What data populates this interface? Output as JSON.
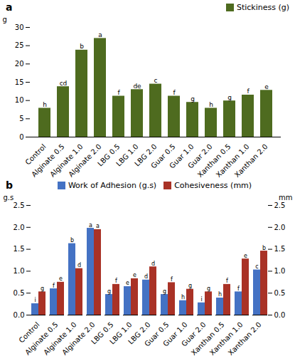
{
  "chart_data": [
    {
      "type": "bar",
      "title": "a",
      "categories": [
        "Control",
        "Alginate 0.5",
        "Alginate 1.0",
        "Alginate 2.0",
        "LBG 0.5",
        "LBG 1.0",
        "LBG 2.0",
        "Guar 0.5",
        "Guar 1.0",
        "Guar 2.0",
        "Xanthan 0.5",
        "Xanthan 1.0",
        "Xanthan 2.0"
      ],
      "series": [
        {
          "name": "Stickiness (g)",
          "color": "#4E6B1F",
          "values": [
            7.9,
            13.8,
            23.8,
            27.0,
            11.2,
            13.0,
            14.5,
            11.2,
            9.5,
            7.9,
            9.9,
            11.5,
            12.8
          ],
          "annotations": [
            "h",
            "cd",
            "b",
            "a",
            "f",
            "de",
            "c",
            "f",
            "g",
            "h",
            "g",
            "f",
            "e"
          ]
        }
      ],
      "ylabel": "g",
      "ylim": [
        0,
        30
      ],
      "yticks": [
        0,
        5,
        10,
        15,
        20,
        25,
        30
      ],
      "legend": "upper right"
    },
    {
      "type": "bar",
      "title": "b",
      "categories": [
        "Control",
        "Alginate 0.5",
        "Alginate 1.0",
        "Alginate 2.0",
        "LBG 0.5",
        "LBG 1.0",
        "LBG 2.0",
        "Guar 0.5",
        "Guar 1.0",
        "Guar 2.0",
        "Xanthan 0.5",
        "Xanthan 1.0",
        "Xanthan 2.0"
      ],
      "series": [
        {
          "name": "Work of Adhesion (g.s)",
          "color": "#4472C4",
          "values": [
            0.26,
            0.6,
            1.63,
            1.98,
            0.47,
            0.65,
            0.8,
            0.47,
            0.33,
            0.28,
            0.39,
            0.53,
            1.03
          ],
          "annotations": [
            "i",
            "f",
            "b",
            "a",
            "g",
            "e",
            "d",
            "g",
            "h",
            "i",
            "h",
            "f",
            "c"
          ]
        },
        {
          "name": "Cohesiveness (mm)",
          "color": "#A93226",
          "axis": "y2",
          "values": [
            0.53,
            0.75,
            1.06,
            1.95,
            0.7,
            0.83,
            1.1,
            0.74,
            0.59,
            0.53,
            0.7,
            1.28,
            1.46
          ],
          "annotations": [
            "g",
            "e",
            "d",
            "a",
            "f",
            "e",
            "d",
            "f",
            "g",
            "g",
            "f",
            "e",
            "b"
          ]
        }
      ],
      "ylabel": "g.s",
      "y2label": "mm",
      "ylim": [
        0,
        2.5
      ],
      "yticks": [
        {
          "value": 0,
          "label": "0.0"
        },
        0.5,
        {
          "value": 1,
          "label": "1.0"
        },
        1.5,
        {
          "value": 2,
          "label": "2.0"
        },
        2.5
      ],
      "y2lim": [
        0,
        2.5
      ],
      "y2ticks": [
        {
          "value": 0,
          "label": "0.0"
        },
        0.5,
        {
          "value": 1,
          "label": "1.0"
        },
        1.5,
        {
          "value": 2,
          "label": "2.0"
        },
        2.5
      ],
      "legend": "upper center"
    }
  ]
}
